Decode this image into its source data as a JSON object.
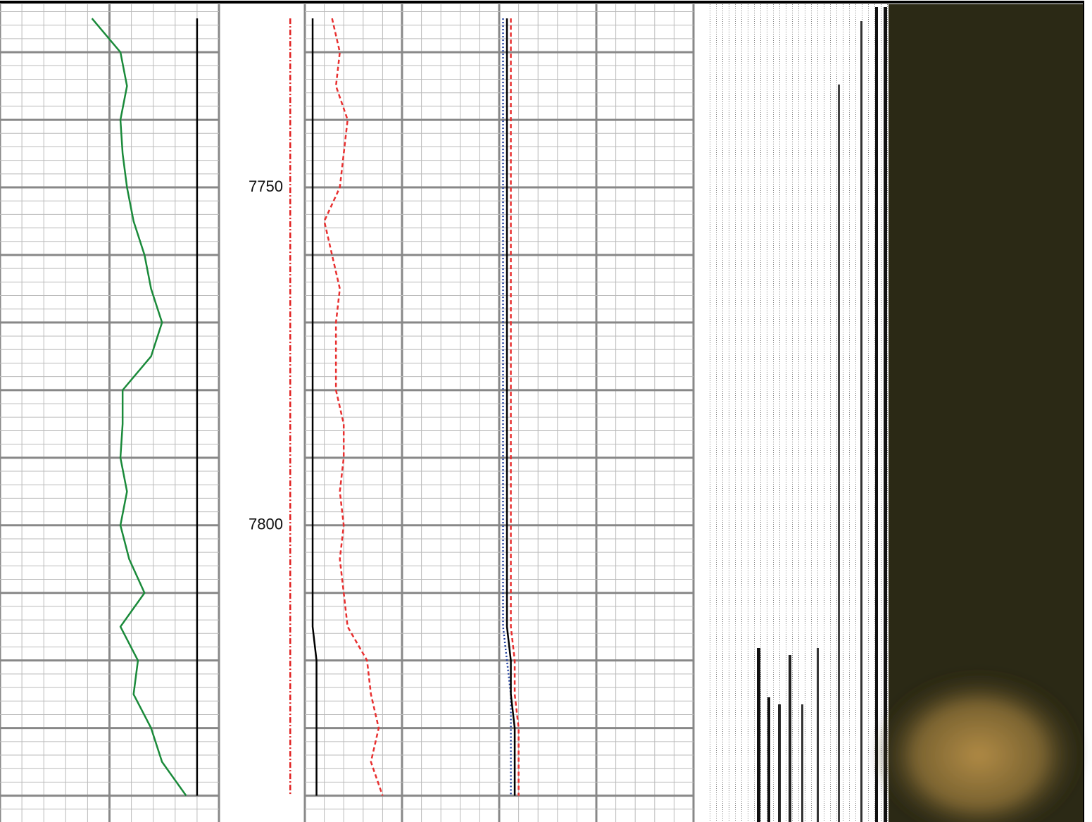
{
  "chart_data": {
    "type": "well-log",
    "ylim": [
      7722.9,
      7843.9
    ],
    "yticks": [
      7750,
      7800
    ],
    "grid_depths": [
      7730,
      7740,
      7750,
      7760,
      7770,
      7780,
      7790,
      7800,
      7810,
      7820,
      7830,
      7840
    ],
    "minor_grid_depths": [
      7724,
      7726,
      7728,
      7732,
      7734,
      7736,
      7738,
      7742,
      7744,
      7746,
      7748,
      7752,
      7754,
      7756,
      7758,
      7762,
      7764,
      7766,
      7768,
      7772,
      7774,
      7776,
      7778,
      7782,
      7784,
      7786,
      7788,
      7792,
      7794,
      7796,
      7798,
      7802,
      7804,
      7806,
      7808,
      7812,
      7814,
      7816,
      7818,
      7822,
      7824,
      7826,
      7828,
      7832,
      7834,
      7836,
      7838,
      7842
    ],
    "xlim": [
      0,
      100
    ],
    "x": [
      7725,
      7730,
      7735,
      7740,
      7745,
      7750,
      7755,
      7760,
      7765,
      7770,
      7775,
      7780,
      7785,
      7790,
      7795,
      7800,
      7805,
      7810,
      7815,
      7820,
      7825,
      7830,
      7835,
      7840
    ],
    "series": [
      {
        "color": "#1a8a3a",
        "track": 0,
        "line_style": "solid",
        "values": [
          42,
          55,
          58,
          55,
          56,
          58,
          61,
          66,
          69,
          74,
          69,
          56,
          56,
          55,
          58,
          55,
          59,
          66,
          55,
          63,
          61,
          69,
          74,
          85
        ]
      },
      {
        "color": "#000000",
        "track": 0,
        "line_style": "solid",
        "values": [
          90,
          90,
          90,
          90,
          90,
          90,
          90,
          90,
          90,
          90,
          90,
          90,
          90,
          90,
          90,
          90,
          90,
          90,
          90,
          90,
          90,
          90,
          90,
          90
        ]
      },
      {
        "color": "#e02020",
        "track": 1,
        "line_style": "dashdot",
        "values": [
          83,
          83,
          83,
          83,
          83,
          83,
          83,
          83,
          83,
          83,
          83,
          83,
          83,
          83,
          83,
          83,
          83,
          83,
          83,
          83,
          83,
          83,
          83,
          83
        ]
      },
      {
        "color": "#000000",
        "track": 2,
        "line_style": "solid",
        "values": [
          2,
          2,
          2,
          2,
          2,
          2,
          2,
          2,
          2,
          2,
          2,
          2,
          2,
          2,
          2,
          2,
          2,
          2,
          2,
          3,
          3,
          3,
          3,
          3
        ]
      },
      {
        "color": "#e83030",
        "track": 2,
        "line_style": "dashed",
        "values": [
          7,
          9,
          8,
          11,
          10,
          9,
          5,
          7,
          9,
          8,
          8,
          8,
          10,
          10,
          9,
          10,
          9,
          10,
          11,
          16,
          17,
          19,
          17,
          20
        ]
      },
      {
        "color": "#2040a0",
        "track": 2,
        "line_style": "dotted",
        "values": [
          51,
          51,
          51,
          51,
          51,
          51,
          51,
          51,
          51,
          51,
          51,
          51,
          51,
          51,
          51,
          51,
          51,
          51,
          51,
          52,
          53,
          53,
          53,
          53
        ]
      },
      {
        "color": "#e83030",
        "track": 2,
        "line_style": "dashed",
        "values": [
          53,
          53,
          53,
          53,
          53,
          53,
          53,
          53,
          53,
          53,
          53,
          53,
          53,
          53,
          53,
          53,
          53,
          53,
          53,
          54,
          54,
          55,
          55,
          55
        ]
      },
      {
        "color": "#000000",
        "track": 2,
        "line_style": "solid",
        "values": [
          52,
          52,
          52,
          52,
          52,
          52,
          52,
          52,
          52,
          52,
          52,
          52,
          52,
          52,
          52,
          52,
          52,
          52,
          52,
          53,
          53,
          54,
          54,
          54
        ]
      }
    ]
  }
}
